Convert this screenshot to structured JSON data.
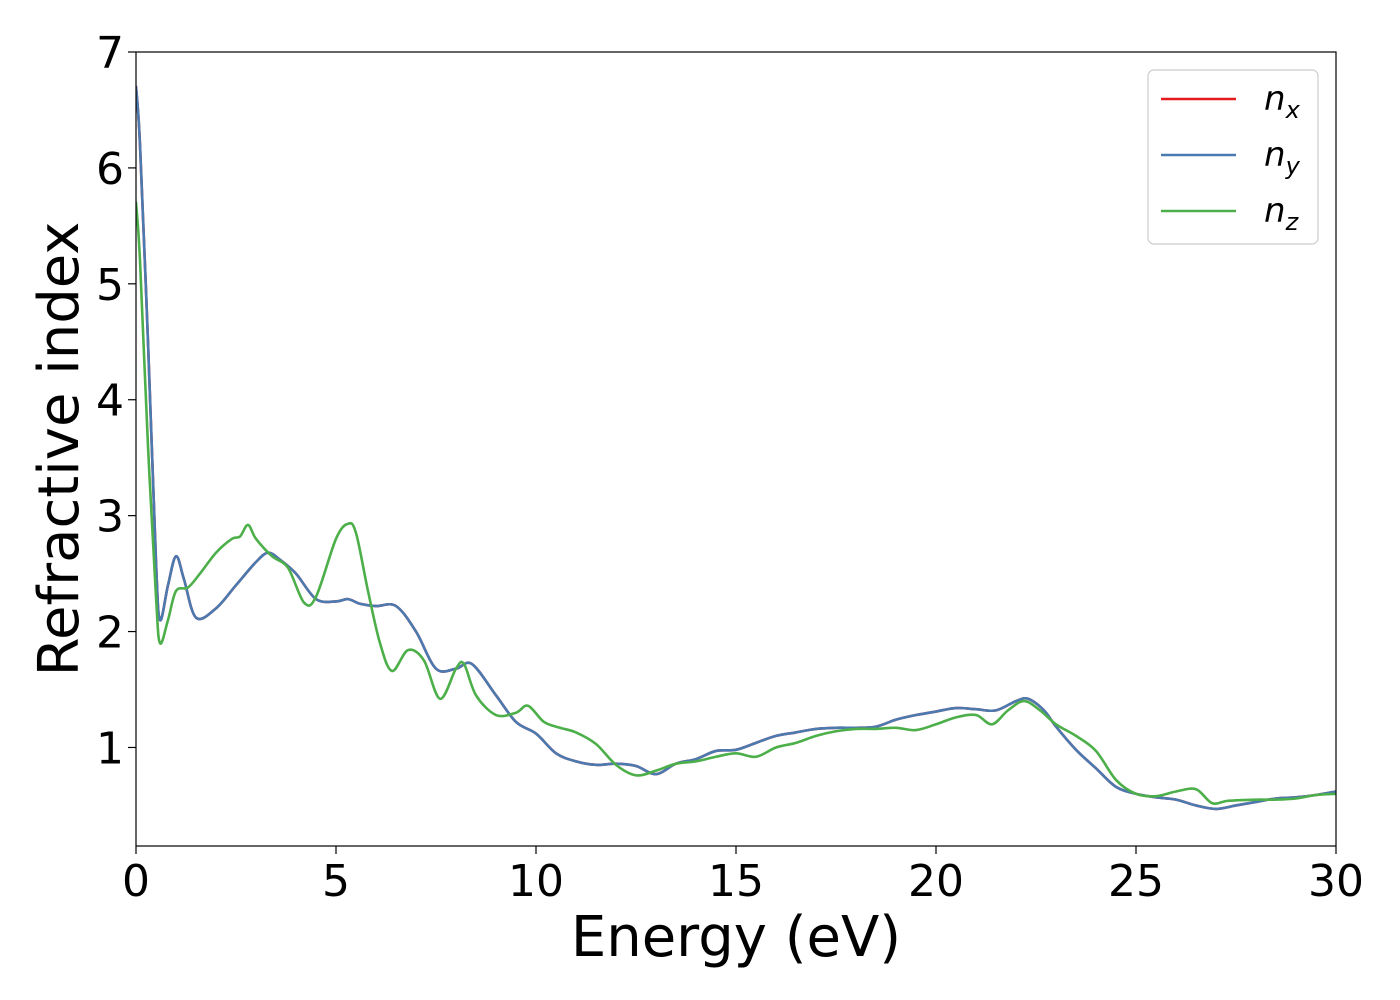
{
  "chart_data": {
    "type": "line",
    "xlabel": "Energy (eV)",
    "ylabel": "Refractive index",
    "xlim": [
      0,
      30
    ],
    "ylim": [
      0.15,
      7
    ],
    "xticks": [
      0,
      5,
      10,
      15,
      20,
      25,
      30
    ],
    "yticks": [
      1,
      2,
      3,
      4,
      5,
      6,
      7
    ],
    "grid": false,
    "legend_position": "top-right",
    "series": [
      {
        "name": "n_x",
        "legend_base": "n",
        "legend_sub": "x",
        "color": "#e41a1c",
        "x": [
          0,
          0.1,
          0.3,
          0.5,
          0.6,
          0.8,
          1.0,
          1.2,
          1.5,
          2.0,
          2.5,
          3.0,
          3.3,
          3.6,
          4.0,
          4.5,
          5.0,
          5.3,
          5.6,
          6.0,
          6.5,
          7.0,
          7.5,
          8.0,
          8.4,
          9.0,
          9.5,
          10.0,
          10.5,
          11.0,
          11.5,
          12.0,
          12.5,
          13.0,
          13.5,
          14.0,
          14.5,
          15.0,
          15.5,
          16.0,
          16.5,
          17.0,
          17.5,
          18.0,
          18.5,
          19.0,
          19.5,
          20.0,
          20.5,
          21.0,
          21.5,
          22.0,
          22.3,
          22.7,
          23.0,
          23.5,
          24.0,
          24.5,
          25.0,
          25.5,
          26.0,
          26.5,
          27.0,
          27.5,
          28.0,
          28.5,
          29.0,
          29.5,
          30.0
        ],
        "y": [
          6.7,
          6.2,
          4.5,
          2.6,
          2.1,
          2.4,
          2.65,
          2.45,
          2.12,
          2.2,
          2.4,
          2.6,
          2.68,
          2.62,
          2.5,
          2.28,
          2.26,
          2.28,
          2.24,
          2.22,
          2.22,
          2.0,
          1.68,
          1.68,
          1.72,
          1.45,
          1.22,
          1.12,
          0.95,
          0.88,
          0.85,
          0.86,
          0.84,
          0.77,
          0.86,
          0.9,
          0.97,
          0.98,
          1.04,
          1.1,
          1.13,
          1.16,
          1.17,
          1.17,
          1.18,
          1.24,
          1.28,
          1.31,
          1.34,
          1.33,
          1.32,
          1.4,
          1.42,
          1.32,
          1.18,
          0.98,
          0.82,
          0.66,
          0.6,
          0.57,
          0.55,
          0.5,
          0.47,
          0.5,
          0.53,
          0.56,
          0.57,
          0.59,
          0.62
        ]
      },
      {
        "name": "n_y",
        "legend_base": "n",
        "legend_sub": "y",
        "color": "#4a7ab0",
        "x": [
          0,
          0.1,
          0.3,
          0.5,
          0.6,
          0.8,
          1.0,
          1.2,
          1.5,
          2.0,
          2.5,
          3.0,
          3.3,
          3.6,
          4.0,
          4.5,
          5.0,
          5.3,
          5.6,
          6.0,
          6.5,
          7.0,
          7.5,
          8.0,
          8.4,
          9.0,
          9.5,
          10.0,
          10.5,
          11.0,
          11.5,
          12.0,
          12.5,
          13.0,
          13.5,
          14.0,
          14.5,
          15.0,
          15.5,
          16.0,
          16.5,
          17.0,
          17.5,
          18.0,
          18.5,
          19.0,
          19.5,
          20.0,
          20.5,
          21.0,
          21.5,
          22.0,
          22.3,
          22.7,
          23.0,
          23.5,
          24.0,
          24.5,
          25.0,
          25.5,
          26.0,
          26.5,
          27.0,
          27.5,
          28.0,
          28.5,
          29.0,
          29.5,
          30.0
        ],
        "y": [
          6.7,
          6.2,
          4.5,
          2.6,
          2.1,
          2.4,
          2.65,
          2.45,
          2.12,
          2.2,
          2.4,
          2.6,
          2.68,
          2.62,
          2.5,
          2.28,
          2.26,
          2.28,
          2.24,
          2.22,
          2.22,
          2.0,
          1.68,
          1.68,
          1.72,
          1.45,
          1.22,
          1.12,
          0.95,
          0.88,
          0.85,
          0.86,
          0.84,
          0.77,
          0.86,
          0.9,
          0.97,
          0.98,
          1.04,
          1.1,
          1.13,
          1.16,
          1.17,
          1.17,
          1.18,
          1.24,
          1.28,
          1.31,
          1.34,
          1.33,
          1.32,
          1.4,
          1.42,
          1.32,
          1.18,
          0.98,
          0.82,
          0.66,
          0.6,
          0.57,
          0.55,
          0.5,
          0.47,
          0.5,
          0.53,
          0.56,
          0.57,
          0.59,
          0.62
        ]
      },
      {
        "name": "n_z",
        "legend_base": "n",
        "legend_sub": "z",
        "color": "#4daf4a",
        "x": [
          0,
          0.1,
          0.3,
          0.5,
          0.6,
          0.8,
          1.0,
          1.3,
          1.6,
          2.0,
          2.4,
          2.6,
          2.8,
          3.0,
          3.4,
          3.8,
          4.2,
          4.5,
          5.0,
          5.3,
          5.5,
          5.8,
          6.1,
          6.4,
          6.8,
          7.2,
          7.6,
          8.0,
          8.2,
          8.5,
          9.0,
          9.5,
          9.8,
          10.2,
          10.6,
          11.0,
          11.5,
          12.0,
          12.5,
          13.0,
          13.5,
          14.0,
          14.5,
          15.0,
          15.5,
          16.0,
          16.5,
          17.0,
          17.5,
          18.0,
          18.5,
          19.0,
          19.5,
          20.0,
          20.5,
          21.0,
          21.4,
          21.8,
          22.2,
          22.6,
          23.0,
          23.5,
          24.0,
          24.5,
          25.0,
          25.5,
          26.0,
          26.5,
          26.9,
          27.3,
          28.0,
          28.5,
          29.0,
          29.5,
          30.0
        ],
        "y": [
          5.7,
          5.2,
          3.6,
          2.3,
          1.9,
          2.1,
          2.35,
          2.38,
          2.5,
          2.68,
          2.8,
          2.82,
          2.92,
          2.8,
          2.65,
          2.55,
          2.25,
          2.3,
          2.8,
          2.93,
          2.85,
          2.35,
          1.9,
          1.66,
          1.84,
          1.75,
          1.42,
          1.68,
          1.72,
          1.45,
          1.28,
          1.3,
          1.36,
          1.22,
          1.17,
          1.13,
          1.03,
          0.85,
          0.76,
          0.8,
          0.86,
          0.88,
          0.92,
          0.95,
          0.92,
          1.0,
          1.04,
          1.1,
          1.14,
          1.16,
          1.16,
          1.17,
          1.15,
          1.2,
          1.26,
          1.28,
          1.2,
          1.32,
          1.4,
          1.32,
          1.2,
          1.1,
          0.97,
          0.72,
          0.6,
          0.58,
          0.62,
          0.64,
          0.52,
          0.54,
          0.55,
          0.55,
          0.56,
          0.59,
          0.6
        ]
      }
    ]
  }
}
